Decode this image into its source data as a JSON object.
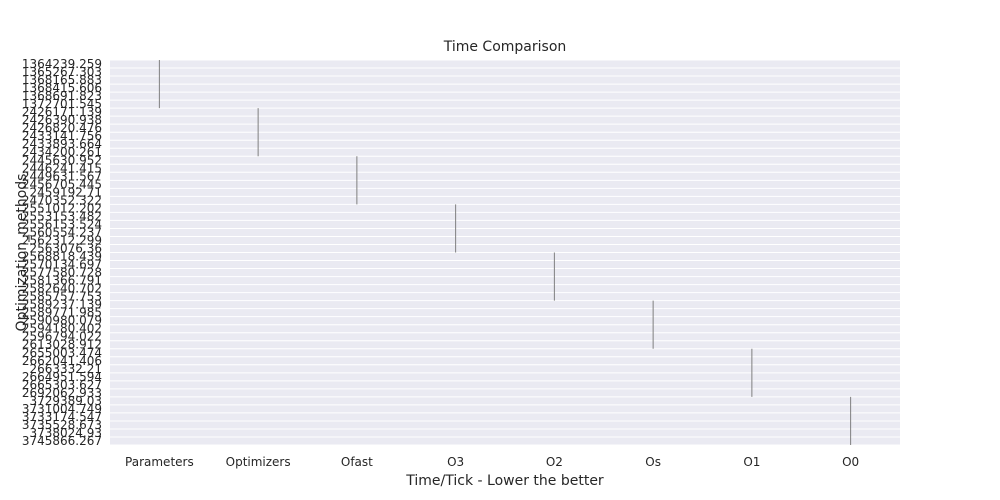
{
  "chart_data": {
    "type": "bar",
    "orientation": "horizontal",
    "title": "Time Comparison",
    "xlabel": "Time/Tick - Lower the better",
    "ylabel": "Optimization_methods",
    "grid": true,
    "legend": "none",
    "categories": [
      "Parameters",
      "Optimizers",
      "Ofast",
      "O3",
      "O2",
      "Os",
      "O1",
      "O0"
    ],
    "y_tick_labels": [
      "1364239.259",
      "1365267.303",
      "1368165.883",
      "1368415.606",
      "1368691.823",
      "1372701.545",
      "2426171.139",
      "2426390.938",
      "2426820.476",
      "2433141.756",
      "2433893.664",
      "2434200.261",
      "2445630.952",
      "2446241.415",
      "2449631.567",
      "2456705.445",
      "2459192.71",
      "2470352.322",
      "2551012.202",
      "2553153.482",
      "2556153.524",
      "2560554.237",
      "2562312.299",
      "2563076.36",
      "2568818.439",
      "2570134.697",
      "2577580.728",
      "2581366.791",
      "2582640.702",
      "2585757.753",
      "2589237.139",
      "2589771.985",
      "2590980.079",
      "2594180.402",
      "2596794.022",
      "2613028.912",
      "2655003.474",
      "2662041.406",
      "2663332.21",
      "2664951.594",
      "2665303.627",
      "2692062.933",
      "3729389.03",
      "3731004.749",
      "3733174.547",
      "3735528.673",
      "3738024.93",
      "3745866.267"
    ],
    "series": [
      {
        "category": "Parameters",
        "from_index": 0,
        "to_index": 5
      },
      {
        "category": "Optimizers",
        "from_index": 6,
        "to_index": 11
      },
      {
        "category": "Ofast",
        "from_index": 12,
        "to_index": 17
      },
      {
        "category": "O3",
        "from_index": 18,
        "to_index": 23
      },
      {
        "category": "O2",
        "from_index": 24,
        "to_index": 29
      },
      {
        "category": "Os",
        "from_index": 30,
        "to_index": 35
      },
      {
        "category": "O1",
        "from_index": 36,
        "to_index": 41
      },
      {
        "category": "O0",
        "from_index": 42,
        "to_index": 47
      }
    ],
    "colors": {
      "plot_background": "#eaeaf2",
      "grid": "#ffffff",
      "mark": "#7f7f7f",
      "text": "#262626"
    }
  }
}
